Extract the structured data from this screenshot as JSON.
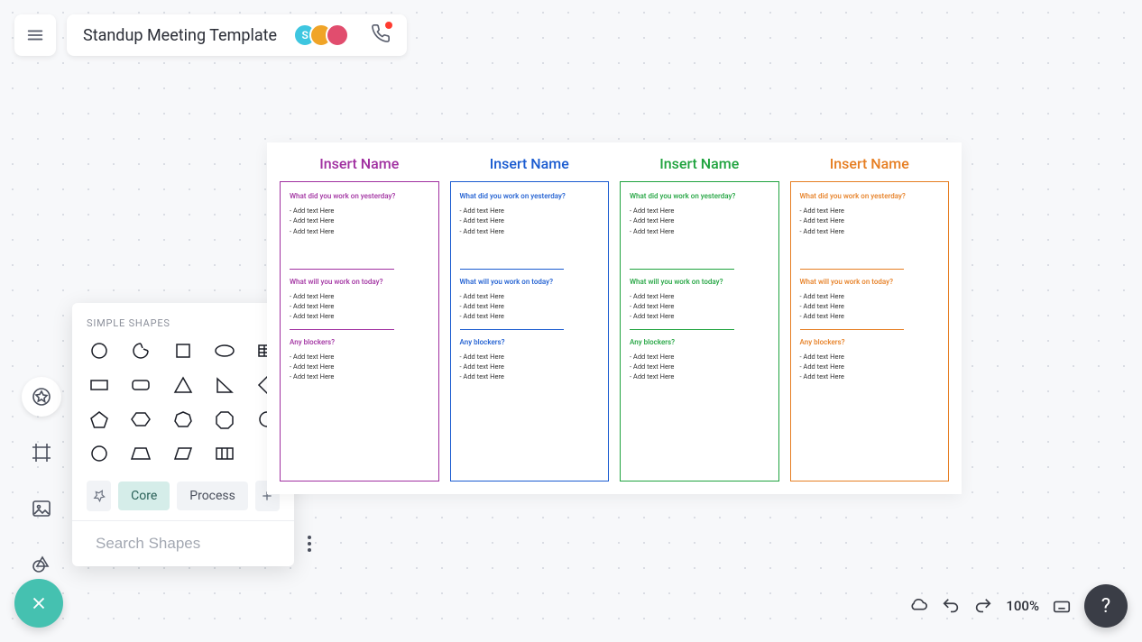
{
  "header": {
    "title": "Standup Meeting Template",
    "avatars": [
      {
        "bg": "#3ec6e0",
        "label": "S"
      },
      {
        "bg": "#f0a427",
        "label": ""
      },
      {
        "bg": "#e14d6e",
        "label": ""
      }
    ]
  },
  "shapesPanel": {
    "title": "SIMPLE SHAPES",
    "tabs": {
      "pinned": "Core",
      "other": "Process"
    },
    "searchPlaceholder": "Search Shapes"
  },
  "canvas": {
    "columns": [
      {
        "title": "Insert Name",
        "color": "#a02fa0",
        "sections": [
          {
            "label": "What did you work on yesterday?",
            "items": [
              "-  Add   text   Here",
              "-  Add   text   Here",
              "-  Add   text   Here"
            ]
          },
          {
            "label": "What will you work on today?",
            "items": [
              "-  Add   text   Here",
              "-  Add   text   Here",
              "-  Add   text   Here"
            ]
          },
          {
            "label": "Any blockers?",
            "items": [
              "-  Add   text   Here",
              "-  Add   text   Here",
              "-  Add   text   Here"
            ]
          }
        ]
      },
      {
        "title": "Insert Name",
        "color": "#1a5bd0",
        "sections": [
          {
            "label": "What did you work on yesterday?",
            "items": [
              "-  Add   text   Here",
              "-  Add   text   Here",
              "-  Add   text   Here"
            ]
          },
          {
            "label": "What will you work on today?",
            "items": [
              "-  Add   text   Here",
              "-  Add   text   Here",
              "-  Add   text   Here"
            ]
          },
          {
            "label": "Any blockers?",
            "items": [
              "-  Add   text   Here",
              "-  Add   text   Here",
              "-  Add   text   Here"
            ]
          }
        ]
      },
      {
        "title": "Insert Name",
        "color": "#1fa33e",
        "sections": [
          {
            "label": "What did you work  on yesterday?",
            "items": [
              "-  Add   text   Here",
              "-  Add   text   Here",
              "-  Add   text   Here"
            ]
          },
          {
            "label": "What will you work on today?",
            "items": [
              "-  Add   text   Here",
              "-  Add   text   Here",
              "-  Add   text   Here"
            ]
          },
          {
            "label": "Any blockers?",
            "items": [
              "-  Add   text   Here",
              "-  Add   text   Here",
              "-  Add   text   Here"
            ]
          }
        ]
      },
      {
        "title": "Insert Name",
        "color": "#e67e22",
        "sections": [
          {
            "label": "What did you work on yesterday?",
            "items": [
              "-  Add   text   Here",
              "-  Add   text   Here",
              "-  Add   text   Here"
            ]
          },
          {
            "label": "What will you work on today?",
            "items": [
              "-  Add   text   Here",
              "-  Add   text   Here",
              "-  Add   text   Here"
            ]
          },
          {
            "label": "Any blockers?",
            "items": [
              "-  Add   text   Here",
              "-  Add   text   Here",
              "-  Add   text   Here"
            ]
          }
        ]
      }
    ]
  },
  "footer": {
    "zoom": "100%",
    "help": "?"
  },
  "shapes": [
    "circle",
    "arc",
    "square",
    "ellipse",
    "spreadsheet",
    "rect-h",
    "rect-round",
    "triangle",
    "right-triangle",
    "diamond",
    "pentagon",
    "hexagon",
    "heptagon",
    "octagon",
    "circle2",
    "circle3",
    "trapezoid",
    "parallelogram",
    "grid"
  ]
}
